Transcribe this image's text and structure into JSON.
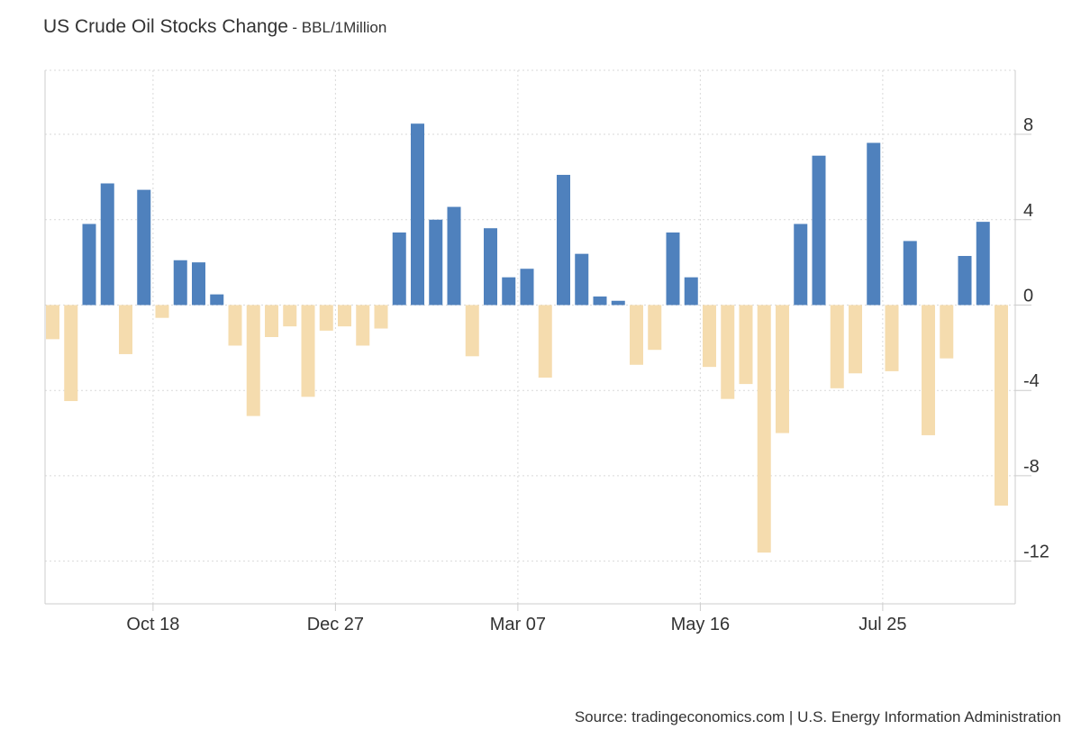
{
  "header": {
    "title": "US Crude Oil Stocks Change",
    "unit": "- BBL/1Million"
  },
  "footer": {
    "source": "Source: tradingeconomics.com | U.S. Energy Information Administration"
  },
  "colors": {
    "positive": "#4f81bd",
    "negative": "#f5dcae",
    "grid": "#d9d9d9",
    "axis": "#cccccc"
  },
  "chart_data": {
    "type": "bar",
    "title": "US Crude Oil Stocks Change",
    "subtitle": "BBL/1Million",
    "xlabel": "",
    "ylabel": "",
    "ylim": [
      -14,
      11
    ],
    "grid": true,
    "x_tick_labels": [
      "Oct 18",
      "Dec 27",
      "Mar 07",
      "May 16",
      "Jul 25"
    ],
    "x_tick_bar_index": [
      5.5,
      15.5,
      25.5,
      35.5,
      45.5
    ],
    "y_ticks": [
      8,
      4,
      0,
      -4,
      -8,
      -12
    ],
    "y_tick_labels": [
      "8",
      "4",
      "0",
      "-4",
      "-8",
      "-12"
    ],
    "values": [
      -1.6,
      -4.5,
      3.8,
      5.7,
      -2.3,
      5.4,
      -0.6,
      2.1,
      2.0,
      0.5,
      -1.9,
      -5.2,
      -1.5,
      -1.0,
      -4.3,
      -1.2,
      -1.0,
      -1.9,
      -1.1,
      3.4,
      8.5,
      4.0,
      4.6,
      -2.4,
      3.6,
      1.3,
      1.7,
      -3.4,
      6.1,
      2.4,
      0.4,
      0.2,
      -2.8,
      -2.1,
      3.4,
      1.3,
      -2.9,
      -4.4,
      -3.7,
      -11.6,
      -6.0,
      3.8,
      7.0,
      -3.9,
      -3.2,
      7.6,
      -3.1,
      3.0,
      -6.1,
      -2.5,
      2.3,
      3.9,
      -9.4
    ]
  }
}
